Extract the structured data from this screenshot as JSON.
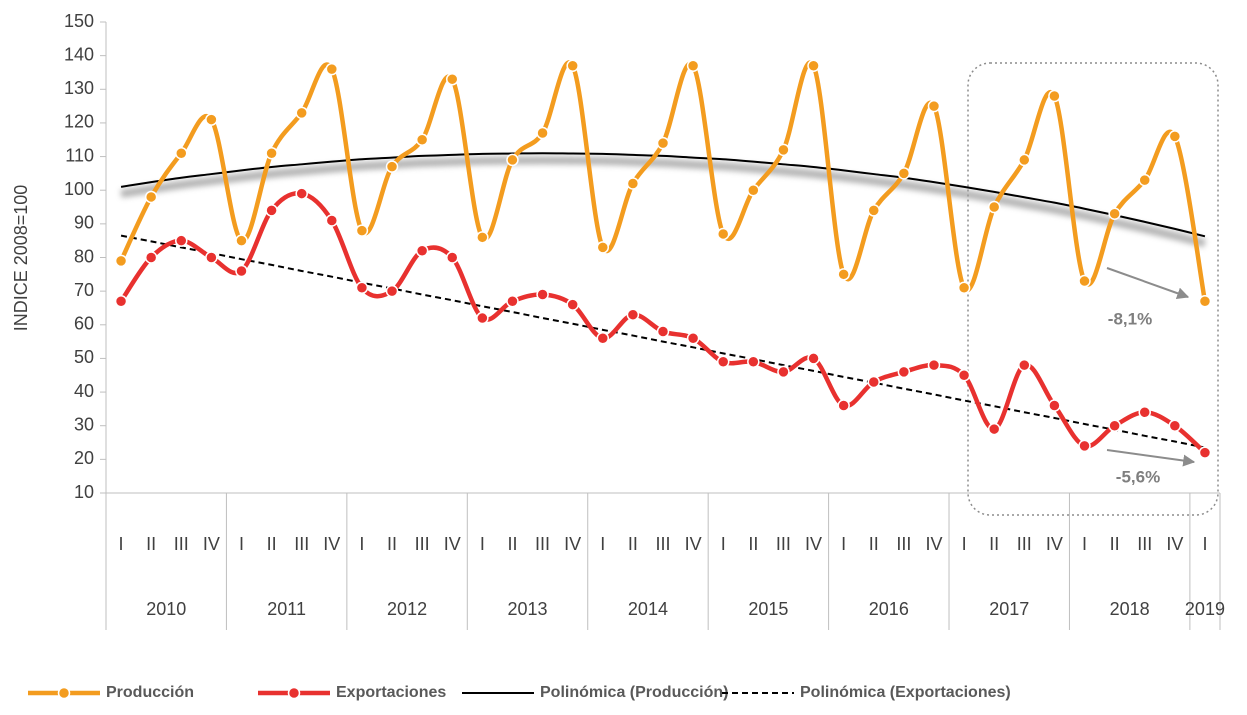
{
  "chart_data": {
    "type": "line",
    "y_label": "INDICE 2008=100",
    "categories": [
      "I",
      "II",
      "III",
      "IV",
      "I",
      "II",
      "III",
      "IV",
      "I",
      "II",
      "III",
      "IV",
      "I",
      "II",
      "III",
      "IV",
      "I",
      "II",
      "III",
      "IV",
      "I",
      "II",
      "III",
      "IV",
      "I",
      "II",
      "III",
      "IV",
      "I",
      "II",
      "III",
      "IV",
      "I",
      "II",
      "III",
      "IV",
      "I"
    ],
    "year_groups": [
      "2010",
      "2011",
      "2012",
      "2013",
      "2014",
      "2015",
      "2016",
      "2017",
      "2018",
      "2019"
    ],
    "ylim": [
      10,
      150
    ],
    "yticks": [
      10,
      20,
      30,
      40,
      50,
      60,
      70,
      80,
      90,
      100,
      110,
      120,
      130,
      140,
      150
    ],
    "grid": false,
    "smooth": true,
    "legend": "bottom",
    "series": [
      {
        "name": "Producción",
        "color": "#f39c1f",
        "line_style": "solid",
        "markers": true,
        "values": [
          79,
          98,
          111,
          121,
          85,
          111,
          123,
          136,
          88,
          107,
          115,
          133,
          86,
          109,
          117,
          137,
          83,
          102,
          114,
          137,
          87,
          100,
          112,
          137,
          75,
          94,
          105,
          125,
          71,
          95,
          109,
          128,
          73,
          93,
          103,
          116,
          67
        ]
      },
      {
        "name": "Exportaciones",
        "color": "#e8312f",
        "line_style": "solid",
        "markers": true,
        "values": [
          67,
          80,
          85,
          80,
          76,
          94,
          99,
          91,
          71,
          70,
          82,
          80,
          62,
          67,
          69,
          66,
          56,
          63,
          58,
          56,
          49,
          49,
          46,
          50,
          36,
          43,
          46,
          48,
          45,
          29,
          48,
          36,
          24,
          30,
          34,
          30,
          22
        ]
      },
      {
        "name": "Polinómica (Producción)",
        "color": "#000000",
        "line_style": "solid",
        "markers": false,
        "shadow": true,
        "values": [
          101.0,
          102.4,
          103.7,
          104.8,
          105.9,
          106.9,
          107.7,
          108.5,
          109.2,
          109.7,
          110.2,
          110.5,
          110.8,
          110.9,
          111.0,
          110.9,
          110.8,
          110.5,
          110.2,
          109.7,
          109.2,
          108.5,
          107.7,
          106.9,
          105.9,
          104.8,
          103.7,
          102.4,
          101.0,
          99.5,
          97.9,
          96.3,
          94.5,
          92.6,
          90.6,
          88.5,
          86.3
        ]
      },
      {
        "name": "Polinómica (Exportaciones)",
        "color": "#000000",
        "line_style": "dashed",
        "markers": false,
        "values": [
          86.5,
          84.8,
          83.0,
          81.3,
          79.5,
          77.8,
          76.0,
          74.3,
          72.5,
          70.8,
          69.0,
          67.3,
          65.5,
          63.8,
          62.0,
          60.3,
          58.5,
          56.8,
          55.0,
          53.3,
          51.5,
          49.8,
          48.0,
          46.3,
          44.5,
          42.8,
          41.0,
          39.3,
          37.5,
          35.8,
          34.0,
          32.3,
          30.5,
          28.8,
          27.0,
          25.3,
          23.5
        ]
      }
    ],
    "annotations": [
      {
        "text": "-8,1%"
      },
      {
        "text": "-5,6%"
      }
    ]
  }
}
